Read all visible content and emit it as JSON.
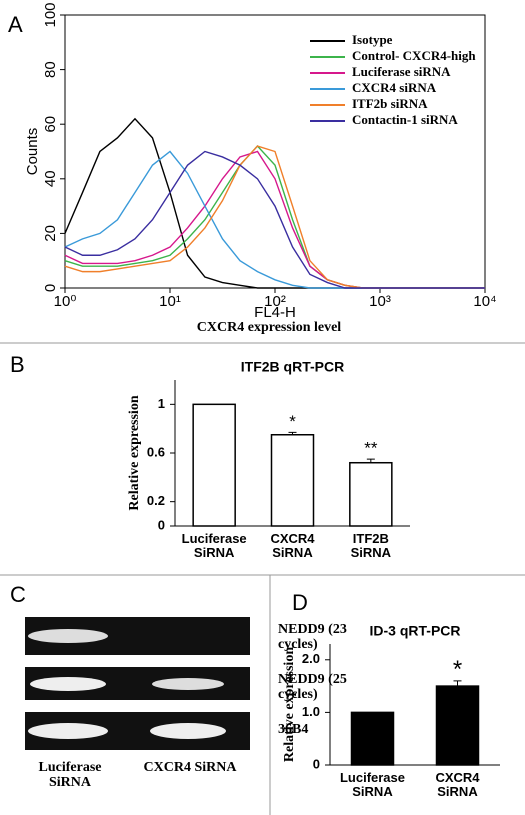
{
  "panel_labels": [
    "A",
    "B",
    "C",
    "D"
  ],
  "chart_data": [
    {
      "type": "line",
      "ylabel": "Counts",
      "xlabel": "FL4-H",
      "xlabel_sub": "CXCR4 expression level",
      "log_x": true,
      "xlim": [
        1,
        10000
      ],
      "xticks": [
        {
          "value": 1,
          "label": "10⁰"
        },
        {
          "value": 10,
          "label": "10¹"
        },
        {
          "value": 100,
          "label": "10²"
        },
        {
          "value": 1000,
          "label": "10³"
        },
        {
          "value": 10000,
          "label": "10⁴"
        }
      ],
      "ylim": [
        0,
        100
      ],
      "yticks": [
        0,
        20,
        40,
        60,
        80,
        100
      ],
      "legend": "upper right",
      "x": [
        1,
        1.47,
        2.15,
        3.16,
        4.64,
        6.81,
        10,
        14.7,
        21.5,
        31.6,
        46.4,
        68.1,
        100,
        147,
        215,
        316,
        464,
        681,
        1000,
        1468,
        2154,
        3162,
        4642,
        6813,
        10000
      ],
      "series": [
        {
          "name": "Isotype",
          "color": "#000000",
          "values": [
            20,
            35,
            50,
            55,
            62,
            55,
            35,
            12,
            4,
            2,
            1,
            0,
            0,
            0,
            0,
            0,
            0,
            0,
            0,
            0,
            0,
            0,
            0,
            0,
            0
          ]
        },
        {
          "name": "Control- CXCR4-high",
          "color": "#3cb44b",
          "values": [
            10,
            8,
            8,
            8,
            9,
            10,
            12,
            18,
            25,
            35,
            45,
            52,
            45,
            25,
            8,
            3,
            1,
            0,
            0,
            0,
            0,
            0,
            0,
            0,
            0
          ]
        },
        {
          "name": "Luciferase siRNA",
          "color": "#d6188c",
          "values": [
            12,
            9,
            9,
            9,
            10,
            12,
            15,
            22,
            30,
            40,
            48,
            50,
            40,
            22,
            8,
            3,
            1,
            0,
            0,
            0,
            0,
            0,
            0,
            0,
            0
          ]
        },
        {
          "name": "CXCR4 siRNA",
          "color": "#3a9ad9",
          "values": [
            15,
            18,
            20,
            25,
            35,
            45,
            50,
            42,
            30,
            18,
            10,
            6,
            3,
            1,
            0,
            0,
            0,
            0,
            0,
            0,
            0,
            0,
            0,
            0,
            0
          ]
        },
        {
          "name": "ITF2b siRNA",
          "color": "#f07f2a",
          "values": [
            8,
            6,
            6,
            7,
            8,
            9,
            10,
            15,
            22,
            32,
            45,
            52,
            50,
            30,
            10,
            3,
            1,
            0,
            0,
            0,
            0,
            0,
            0,
            0,
            0
          ]
        },
        {
          "name": "Contactin-1 siRNA",
          "color": "#3a2ea0",
          "values": [
            15,
            12,
            12,
            14,
            18,
            25,
            35,
            45,
            50,
            48,
            45,
            40,
            30,
            15,
            5,
            2,
            0,
            0,
            0,
            0,
            0,
            0,
            0,
            0,
            0
          ]
        }
      ]
    },
    {
      "type": "bar",
      "title": "ITF2B qRT-PCR",
      "ylabel": "Relative expression",
      "categories": [
        "Luciferase SiRNA",
        "CXCR4 SiRNA",
        "ITF2B SiRNA"
      ],
      "values": [
        1,
        0.75,
        0.52
      ],
      "errors": [
        0,
        0.02,
        0.03
      ],
      "annotations": [
        null,
        "*",
        "**"
      ],
      "color": "#ffffff",
      "ylim": [
        0,
        1.2
      ],
      "yticks": [
        0,
        0.2,
        0.6,
        1
      ]
    },
    {
      "type": "bar",
      "title": "ID-3 qRT-PCR",
      "ylabel": "Relative expression",
      "categories": [
        "Luciferase SiRNA",
        "CXCR4 SiRNA"
      ],
      "values": [
        1,
        1.5
      ],
      "errors": [
        0,
        0.1
      ],
      "annotations": [
        null,
        "*"
      ],
      "color": "#000000",
      "ylim": [
        0,
        2.3
      ],
      "yticks": [
        0,
        {
          "value": 1,
          "label": "1.0"
        },
        {
          "value": 2,
          "label": "2.0"
        }
      ]
    }
  ],
  "gel": {
    "rows": [
      "NEDD9 (23 cycles)",
      "NEDD9 (25 cycles)",
      "36B4"
    ],
    "lanes": [
      "Luciferase SiRNA",
      "CXCR4 SiRNA"
    ]
  }
}
